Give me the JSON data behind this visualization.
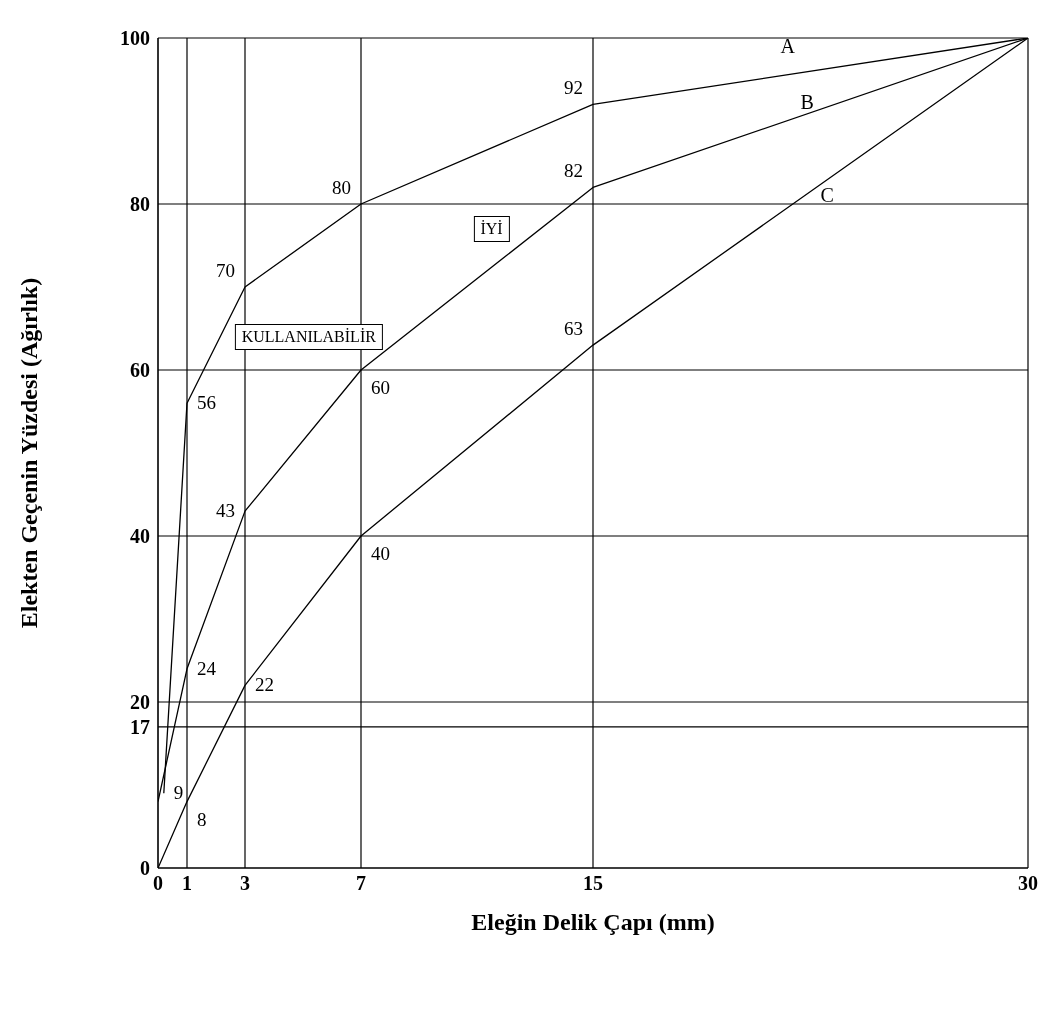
{
  "chart_data": {
    "type": "line",
    "xlabel": "Eleğin Delik Çapı (mm)",
    "ylabel": "Elekten Geçenin Yüzdesi (Ağırlık)",
    "series": [
      {
        "name": "A",
        "color": "#000000",
        "x": [
          0.2,
          1,
          3,
          7,
          15,
          30
        ],
        "values": [
          9,
          56,
          70,
          80,
          92,
          100
        ],
        "value_labels": [
          "9",
          "56",
          "70",
          "80",
          "92",
          null
        ]
      },
      {
        "name": "B",
        "color": "#000000",
        "x": [
          0,
          1,
          3,
          7,
          15,
          30
        ],
        "values": [
          8,
          24,
          43,
          60,
          82,
          100
        ],
        "value_labels": [
          null,
          "24",
          "43",
          "60",
          "82",
          null
        ]
      },
      {
        "name": "C",
        "color": "#000000",
        "x": [
          0,
          1,
          3,
          7,
          15,
          30
        ],
        "values": [
          0,
          8,
          22,
          40,
          63,
          100
        ],
        "value_labels": [
          null,
          "8",
          "22",
          "40",
          "63",
          null
        ]
      }
    ],
    "xlim": [
      0,
      30
    ],
    "xticks": [
      0,
      1,
      3,
      7,
      15,
      30
    ],
    "ylim": [
      0,
      100
    ],
    "yticks": [
      0,
      17,
      20,
      40,
      60,
      80,
      100
    ],
    "grid": true,
    "marker": "none",
    "line_style": "solid",
    "annotations": [
      "KULLANILABİLİR",
      "İYİ"
    ]
  }
}
